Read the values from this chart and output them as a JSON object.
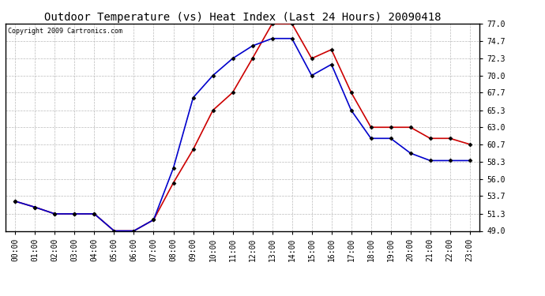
{
  "title": "Outdoor Temperature (vs) Heat Index (Last 24 Hours) 20090418",
  "copyright": "Copyright 2009 Cartronics.com",
  "hours": [
    "00:00",
    "01:00",
    "02:00",
    "03:00",
    "04:00",
    "05:00",
    "06:00",
    "07:00",
    "08:00",
    "09:00",
    "10:00",
    "11:00",
    "12:00",
    "13:00",
    "14:00",
    "15:00",
    "16:00",
    "17:00",
    "18:00",
    "19:00",
    "20:00",
    "21:00",
    "22:00",
    "23:00"
  ],
  "temp": [
    53.0,
    52.2,
    51.3,
    51.3,
    51.3,
    49.0,
    49.0,
    50.5,
    55.5,
    60.0,
    65.3,
    67.7,
    72.3,
    77.0,
    77.0,
    72.3,
    73.5,
    67.7,
    63.0,
    63.0,
    63.0,
    61.5,
    61.5,
    60.7
  ],
  "heat_index": [
    53.0,
    52.2,
    51.3,
    51.3,
    51.3,
    49.0,
    49.0,
    50.5,
    57.5,
    67.0,
    70.0,
    72.3,
    74.0,
    75.0,
    75.0,
    70.0,
    71.5,
    65.3,
    61.5,
    61.5,
    59.5,
    58.5,
    58.5,
    58.5
  ],
  "temp_color": "#cc0000",
  "heat_index_color": "#0000cc",
  "background_color": "#ffffff",
  "grid_color": "#bbbbbb",
  "ylim": [
    49.0,
    77.0
  ],
  "yticks": [
    49.0,
    51.3,
    53.7,
    56.0,
    58.3,
    60.7,
    63.0,
    65.3,
    67.7,
    70.0,
    72.3,
    74.7,
    77.0
  ],
  "title_fontsize": 10,
  "copyright_fontsize": 6,
  "tick_fontsize": 7,
  "marker": "D",
  "marker_size": 2.5,
  "linewidth": 1.2
}
